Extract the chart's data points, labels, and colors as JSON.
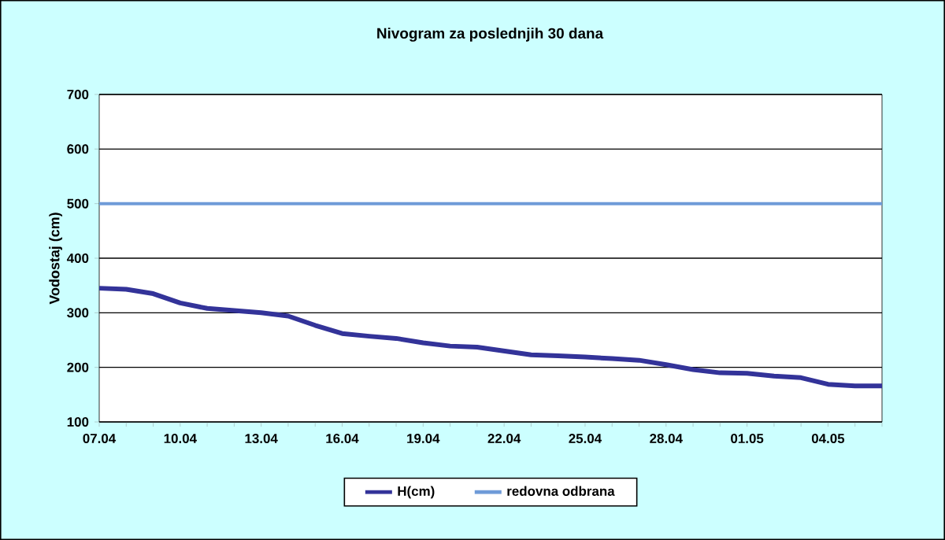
{
  "chart_data": {
    "type": "line",
    "title": "Nivogram za poslednjih 30 dana",
    "ylabel": "Vodostaj (cm)",
    "categories": [
      "07.04",
      null,
      null,
      "10.04",
      null,
      null,
      "13.04",
      null,
      null,
      "16.04",
      null,
      null,
      "19.04",
      null,
      null,
      "22.04",
      null,
      null,
      "25.04",
      null,
      null,
      "28.04",
      null,
      null,
      "01.05",
      null,
      null,
      "04.05",
      null,
      null
    ],
    "series": [
      {
        "name": "H(cm)",
        "color": "#333399",
        "values": [
          345,
          343,
          335,
          318,
          308,
          304,
          300,
          294,
          277,
          262,
          257,
          253,
          245,
          239,
          237,
          230,
          223,
          221,
          219,
          216,
          213,
          205,
          196,
          190,
          189,
          184,
          181,
          169,
          166,
          166
        ]
      }
    ],
    "ref_lines": [
      {
        "axis": "y",
        "value": 500,
        "label": "redovna odbrana",
        "color": "#6f9bd8",
        "line_style": "solid"
      }
    ],
    "ylim": [
      100,
      700
    ],
    "yticks": [
      100,
      200,
      300,
      400,
      500,
      600,
      700
    ],
    "grid": "y",
    "legend": "bottom",
    "marker": "none",
    "line_style": "solid"
  }
}
